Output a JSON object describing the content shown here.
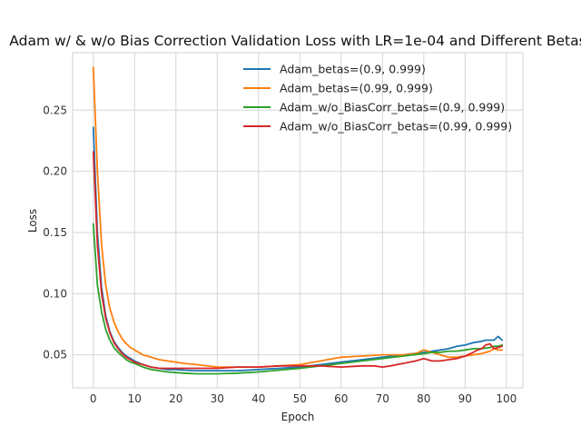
{
  "chart_data": {
    "type": "line",
    "title": "Adam w/ & w/o Bias Correction Validation Loss with LR=1e-04 and Different Betas",
    "xlabel": "Epoch",
    "ylabel": "Loss",
    "xlim": [
      -5,
      104
    ],
    "ylim": [
      0.023,
      0.297
    ],
    "xticks": [
      0,
      10,
      20,
      30,
      40,
      50,
      60,
      70,
      80,
      90,
      100
    ],
    "yticks": [
      0.05,
      0.1,
      0.15,
      0.2,
      0.25
    ],
    "ytick_labels": [
      "0.05",
      "0.10",
      "0.15",
      "0.20",
      "0.25"
    ],
    "grid": true,
    "legend_position": "top-right",
    "series": [
      {
        "name": "Adam_betas=(0.9, 0.999)",
        "color": "#1f77b4",
        "x": [
          0,
          1,
          2,
          3,
          4,
          5,
          6,
          7,
          8,
          9,
          10,
          12,
          14,
          16,
          18,
          20,
          22,
          25,
          30,
          35,
          40,
          45,
          50,
          55,
          60,
          65,
          70,
          75,
          80,
          82,
          84,
          86,
          88,
          90,
          92,
          94,
          95,
          96,
          97,
          98,
          99
        ],
        "y": [
          0.236,
          0.15,
          0.105,
          0.082,
          0.069,
          0.061,
          0.056,
          0.052,
          0.049,
          0.047,
          0.045,
          0.042,
          0.04,
          0.039,
          0.038,
          0.038,
          0.0375,
          0.037,
          0.037,
          0.037,
          0.038,
          0.039,
          0.04,
          0.042,
          0.044,
          0.046,
          0.048,
          0.05,
          0.052,
          0.053,
          0.054,
          0.055,
          0.057,
          0.058,
          0.06,
          0.061,
          0.062,
          0.062,
          0.062,
          0.065,
          0.062
        ]
      },
      {
        "name": "Adam_betas=(0.99, 0.999)",
        "color": "#ff7f0e",
        "x": [
          0,
          1,
          2,
          3,
          4,
          5,
          6,
          7,
          8,
          9,
          10,
          12,
          14,
          16,
          18,
          20,
          22,
          25,
          30,
          35,
          40,
          45,
          50,
          55,
          60,
          65,
          70,
          75,
          78,
          80,
          82,
          84,
          86,
          88,
          90,
          92,
          94,
          96,
          97,
          98,
          99
        ],
        "y": [
          0.285,
          0.2,
          0.14,
          0.107,
          0.088,
          0.077,
          0.069,
          0.063,
          0.059,
          0.056,
          0.054,
          0.05,
          0.048,
          0.046,
          0.045,
          0.044,
          0.043,
          0.042,
          0.04,
          0.04,
          0.04,
          0.041,
          0.042,
          0.045,
          0.048,
          0.049,
          0.05,
          0.05,
          0.051,
          0.054,
          0.052,
          0.05,
          0.048,
          0.048,
          0.049,
          0.05,
          0.051,
          0.053,
          0.055,
          0.054,
          0.054
        ]
      },
      {
        "name": "Adam_w/o_BiasCorr_betas=(0.9, 0.999)",
        "color": "#2ca02c",
        "x": [
          0,
          1,
          2,
          3,
          4,
          5,
          6,
          7,
          8,
          9,
          10,
          12,
          14,
          16,
          18,
          20,
          22,
          25,
          30,
          35,
          40,
          45,
          50,
          55,
          60,
          65,
          70,
          75,
          80,
          82,
          84,
          86,
          88,
          90,
          92,
          94,
          96,
          97,
          98,
          99
        ],
        "y": [
          0.157,
          0.107,
          0.085,
          0.071,
          0.062,
          0.056,
          0.052,
          0.049,
          0.046,
          0.044,
          0.043,
          0.04,
          0.038,
          0.037,
          0.036,
          0.0355,
          0.035,
          0.0345,
          0.0345,
          0.035,
          0.036,
          0.0375,
          0.039,
          0.041,
          0.043,
          0.045,
          0.047,
          0.049,
          0.051,
          0.052,
          0.052,
          0.053,
          0.053,
          0.054,
          0.055,
          0.055,
          0.056,
          0.057,
          0.057,
          0.058
        ]
      },
      {
        "name": "Adam_w/o_BiasCorr_betas=(0.99, 0.999)",
        "color": "#d62728",
        "x": [
          0,
          1,
          2,
          3,
          4,
          5,
          6,
          7,
          8,
          9,
          10,
          12,
          14,
          16,
          18,
          20,
          22,
          25,
          30,
          35,
          40,
          45,
          50,
          55,
          60,
          65,
          68,
          70,
          72,
          75,
          78,
          80,
          82,
          84,
          86,
          88,
          90,
          92,
          93,
          94,
          95,
          96,
          97,
          98,
          99
        ],
        "y": [
          0.216,
          0.14,
          0.1,
          0.08,
          0.068,
          0.06,
          0.055,
          0.051,
          0.048,
          0.046,
          0.044,
          0.042,
          0.04,
          0.039,
          0.039,
          0.039,
          0.039,
          0.039,
          0.039,
          0.04,
          0.04,
          0.041,
          0.041,
          0.041,
          0.04,
          0.041,
          0.041,
          0.04,
          0.041,
          0.043,
          0.045,
          0.047,
          0.045,
          0.045,
          0.046,
          0.047,
          0.049,
          0.052,
          0.054,
          0.055,
          0.058,
          0.059,
          0.055,
          0.056,
          0.057
        ]
      }
    ]
  }
}
